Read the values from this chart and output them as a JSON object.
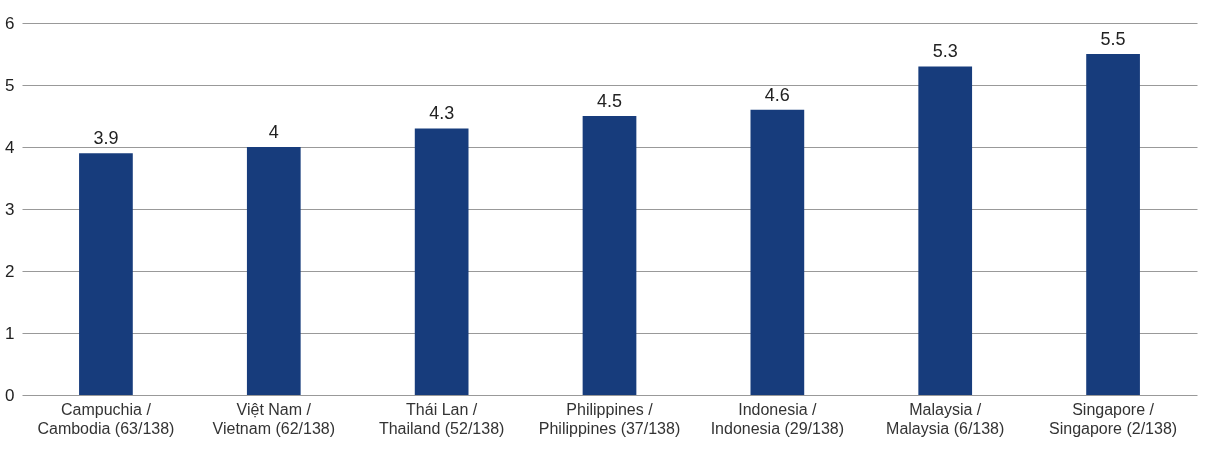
{
  "chart_data": {
    "type": "bar",
    "categories": [
      "Campuchia /\nCambodia (63/138)",
      "Việt Nam /\nVietnam (62/138)",
      "Thái Lan /\nThailand (52/138)",
      "Philippines /\nPhilippines (37/138)",
      "Indonesia /\nIndonesia (29/138)",
      "Malaysia /\nMalaysia (6/138)",
      "Singapore /\nSingapore (2/138)"
    ],
    "values": [
      3.9,
      4,
      4.3,
      4.5,
      4.6,
      5.3,
      5.5
    ],
    "color": "#173c7c",
    "ylim": [
      0,
      6
    ],
    "yticks": [
      0,
      1,
      2,
      3,
      4,
      5,
      6
    ],
    "grid": "y",
    "data_labels": true
  }
}
